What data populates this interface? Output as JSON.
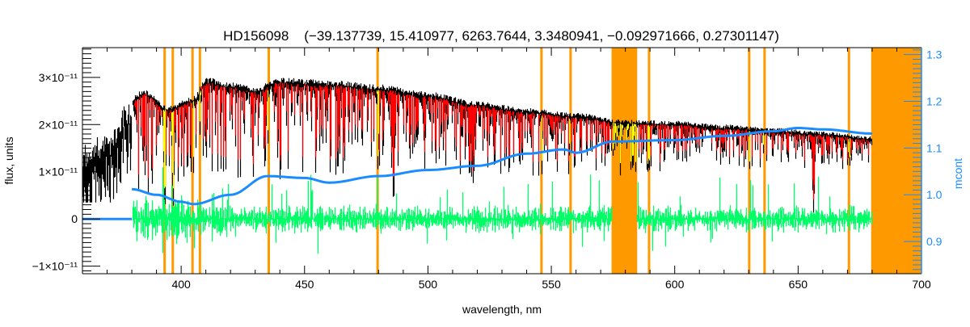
{
  "chart_data": {
    "type": "line",
    "title": "HD156098    (−39.137739, 15.410977, 6263.7644, 3.3480941, −0.092971666, 0.27301147)",
    "xlabel": "wavelength, nm",
    "ylabel": "flux, units",
    "y2label": "mcont",
    "xlim": [
      360,
      700
    ],
    "ylim": [
      -1.16e-11,
      3.63e-11
    ],
    "y2lim": [
      0.831,
      1.315
    ],
    "x_ticks": [
      400,
      450,
      500,
      550,
      600,
      650,
      700
    ],
    "x_tick_labels": [
      "400",
      "450",
      "500",
      "550",
      "600",
      "650",
      "700"
    ],
    "y_ticks": [
      -1e-11,
      0,
      1e-11,
      2e-11,
      3e-11
    ],
    "y_tick_labels": [
      "−1×10⁻¹¹",
      "0",
      "1×10⁻¹¹",
      "2×10⁻¹¹",
      "3×10⁻¹¹"
    ],
    "y2_ticks": [
      0.9,
      1.0,
      1.1,
      1.2,
      1.3
    ],
    "y2_tick_labels": [
      "0.9",
      "1.0",
      "1.1",
      "1.2",
      "1.3"
    ],
    "colors": {
      "observed": "#000000",
      "model": "#ff0000",
      "masked_model": "#ffff00",
      "residual": "#00ff66",
      "mcont": "#1a8cff",
      "mask": "#ff9900"
    },
    "series": [
      {
        "name": "observed flux (upper envelope, 1e-11 units)",
        "x": [
          360,
          370,
          378,
          385,
          395,
          405,
          410,
          420,
          430,
          440,
          460,
          480,
          500,
          520,
          540,
          560,
          580,
          600,
          620,
          640,
          660,
          680
        ],
        "y": [
          1.6,
          1.8,
          2.5,
          2.75,
          2.4,
          2.6,
          3.0,
          2.9,
          2.8,
          3.0,
          2.95,
          2.85,
          2.7,
          2.5,
          2.35,
          2.25,
          2.1,
          2.08,
          2.0,
          1.93,
          1.85,
          1.75
        ]
      },
      {
        "name": "mcont (right axis)",
        "x": [
          380,
          390,
          400,
          405,
          420,
          435,
          450,
          460,
          480,
          500,
          520,
          540,
          555,
          560,
          575,
          600,
          620,
          640,
          650,
          660,
          680
        ],
        "y": [
          1.012,
          1.0,
          0.985,
          0.98,
          1.0,
          1.04,
          1.036,
          1.026,
          1.04,
          1.053,
          1.062,
          1.088,
          1.097,
          1.09,
          1.114,
          1.117,
          1.126,
          1.136,
          1.143,
          1.14,
          1.131
        ]
      }
    ],
    "absorption_lines": [
      {
        "wl": 393.4,
        "depth": 0.85
      },
      {
        "wl": 396.8,
        "depth": 0.8
      },
      {
        "wl": 410.2,
        "depth": 0.5
      },
      {
        "wl": 434.0,
        "depth": 0.55
      },
      {
        "wl": 486.1,
        "depth": 0.8
      },
      {
        "wl": 516.9,
        "depth": 0.6
      },
      {
        "wl": 518.4,
        "depth": 0.65
      },
      {
        "wl": 527.0,
        "depth": 0.5
      },
      {
        "wl": 589.0,
        "depth": 0.5
      },
      {
        "wl": 589.6,
        "depth": 0.45
      },
      {
        "wl": 656.3,
        "depth": 0.85
      }
    ],
    "masked_lines_nm": [
      393.3,
      396.6,
      404.6,
      407.6,
      435.5,
      479.6,
      546.0,
      557.8,
      589.6,
      630.2,
      636.4,
      670.6
    ],
    "masked_bands_nm": [
      [
        574.4,
        584.8
      ],
      [
        679.6,
        700
      ]
    ],
    "residual_range": [
      380,
      680
    ],
    "residual_gap": [
      574.4,
      584.8
    ]
  }
}
